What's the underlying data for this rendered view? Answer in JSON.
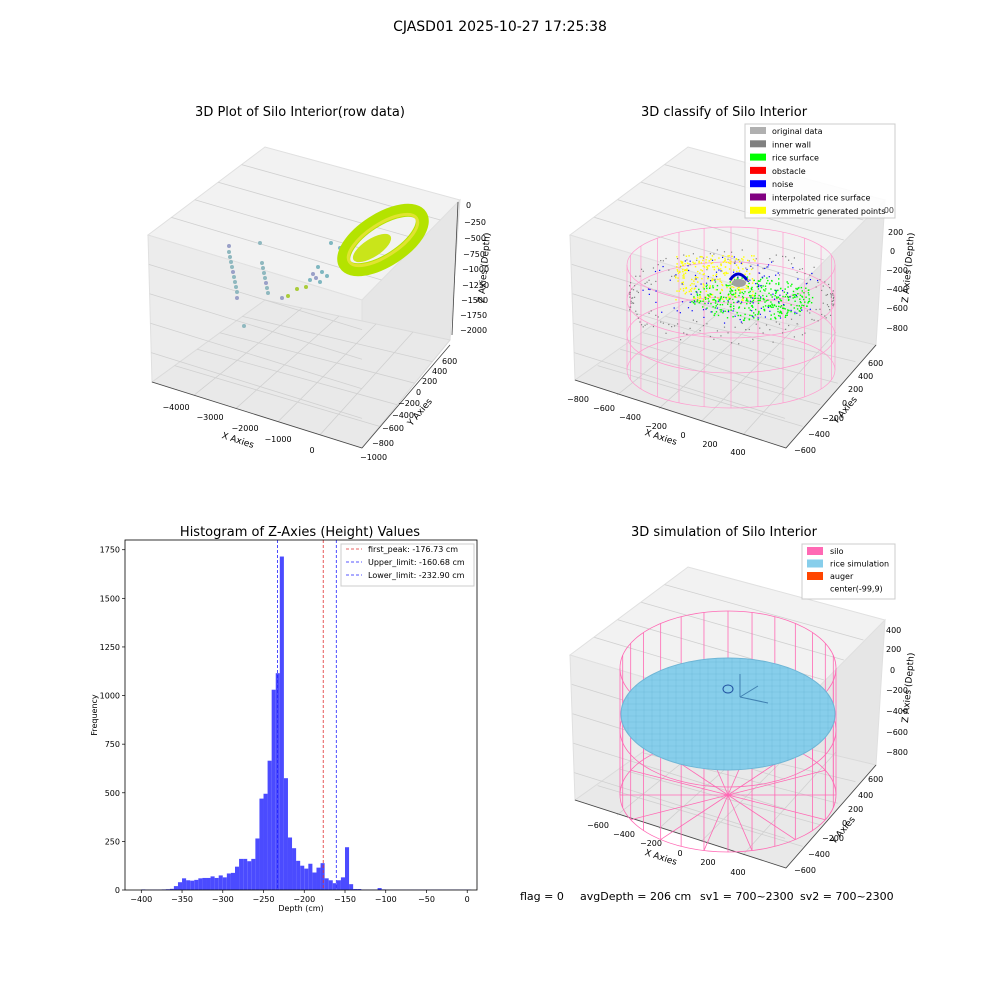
{
  "suptitle": "CJASD01 2025-10-27 17:25:38",
  "colors": {
    "hist_bar": "#4b4bff",
    "peak_line": "#e03030",
    "limit_line": "#2020ff",
    "silo": "#ff69b4",
    "rice_sim": "#87ceeb",
    "auger": "#ff4500",
    "rice_surface": "#00ff00",
    "noise": "#0000ff",
    "inner_wall": "#808080",
    "symmetric": "#ffff00"
  },
  "chart_data": [
    {
      "type": "scatter",
      "title": "3D Plot of Silo Interior(row data)",
      "xlabel": "X Axies",
      "ylabel": "Y Axies",
      "zlabel": "Z Axies (Depth)",
      "x_ticks": [
        "−4000",
        "−3000",
        "−2000",
        "−1000",
        "0"
      ],
      "y_ticks": [
        "−1000",
        "−800",
        "−600",
        "−400",
        "−200",
        "0",
        "200",
        "400",
        "600"
      ],
      "z_ticks": [
        "0",
        "−250",
        "−500",
        "−750",
        "−1000",
        "−1250",
        "−1500",
        "−1750",
        "−2000"
      ]
    },
    {
      "type": "scatter",
      "title": "3D classify of Silo Interior",
      "xlabel": "X Axies",
      "ylabel": "Y Axies",
      "zlabel": "Z Axies (Depth)",
      "x_ticks": [
        "−800",
        "−600",
        "−400",
        "−200",
        "0",
        "200",
        "400"
      ],
      "y_ticks": [
        "−600",
        "−400",
        "−200",
        "0",
        "200",
        "400",
        "600"
      ],
      "z_ticks": [
        "200",
        "0",
        "−200",
        "−400",
        "−600",
        "−800"
      ],
      "z_tick_partial": "00",
      "legend_position": "top-right",
      "legend": [
        {
          "label": "original data",
          "color": "#b0b0b0"
        },
        {
          "label": "inner wall",
          "color": "#808080"
        },
        {
          "label": "rice surface",
          "color": "#00ff00"
        },
        {
          "label": "obstacle",
          "color": "#ff0000"
        },
        {
          "label": "noise",
          "color": "#0000ff"
        },
        {
          "label": "interpolated rice surface",
          "color": "#800080"
        },
        {
          "label": "symmetric generated points",
          "color": "#ffff00"
        }
      ]
    },
    {
      "type": "bar",
      "title": "Histogram of Z-Axies (Height) Values",
      "xlabel": "Depth (cm)",
      "ylabel": "Frequency",
      "xlim": [
        -420,
        12
      ],
      "ylim": [
        0,
        1800
      ],
      "x_ticks": [
        -400,
        -350,
        -300,
        -250,
        -200,
        -150,
        -100,
        -50,
        0
      ],
      "y_ticks": [
        0,
        250,
        500,
        750,
        1000,
        1250,
        1500,
        1750
      ],
      "bin_width": 5,
      "bin_starts": [
        -400,
        -395,
        -390,
        -385,
        -380,
        -375,
        -370,
        -365,
        -360,
        -355,
        -350,
        -345,
        -340,
        -335,
        -330,
        -325,
        -320,
        -315,
        -310,
        -305,
        -300,
        -295,
        -290,
        -285,
        -280,
        -275,
        -270,
        -265,
        -260,
        -255,
        -250,
        -245,
        -240,
        -235,
        -230,
        -225,
        -220,
        -215,
        -210,
        -205,
        -200,
        -195,
        -190,
        -185,
        -180,
        -175,
        -170,
        -165,
        -160,
        -155,
        -150,
        -145,
        -140,
        -135,
        -130,
        -125,
        -120,
        -115,
        -110,
        -105,
        -100,
        -95,
        -90,
        -85,
        -80,
        -75,
        -70,
        -65,
        -60,
        -55,
        -50,
        -45,
        -40,
        -35,
        -30,
        -25,
        -20,
        -15,
        -10,
        -5,
        0
      ],
      "values": [
        3,
        2,
        2,
        2,
        2,
        3,
        4,
        6,
        20,
        40,
        60,
        50,
        48,
        52,
        60,
        62,
        62,
        70,
        62,
        75,
        65,
        85,
        88,
        120,
        160,
        160,
        148,
        160,
        265,
        470,
        495,
        665,
        1030,
        1115,
        1715,
        575,
        270,
        215,
        150,
        125,
        110,
        135,
        90,
        115,
        138,
        60,
        50,
        35,
        50,
        65,
        220,
        30,
        5,
        5,
        2,
        2,
        2,
        2,
        10,
        3,
        2,
        2,
        2,
        2,
        2,
        2,
        2,
        2,
        2,
        2,
        2,
        2,
        2,
        2,
        2,
        2,
        2,
        2,
        2,
        2,
        2
      ],
      "lines": [
        {
          "label": "first_peak: -176.73 cm",
          "x": -176.73,
          "color": "#e03030"
        },
        {
          "label": "Upper_limit: -160.68 cm",
          "x": -160.68,
          "color": "#2020ff"
        },
        {
          "label": "Lower_limit: -232.90 cm",
          "x": -232.9,
          "color": "#2020ff"
        }
      ],
      "legend_position": "top-right"
    },
    {
      "type": "scatter",
      "title": "3D simulation of Silo Interior",
      "xlabel": "X Axies",
      "ylabel": "Y Axies",
      "zlabel": "Z Axies (Depth)",
      "x_ticks": [
        "−600",
        "−400",
        "−200",
        "0",
        "200",
        "400"
      ],
      "y_ticks": [
        "−600",
        "−400",
        "−200",
        "0",
        "200",
        "400",
        "600"
      ],
      "z_ticks": [
        "400",
        "200",
        "0",
        "−200",
        "−400",
        "−600",
        "−800"
      ],
      "legend_position": "top-right",
      "legend": [
        {
          "label": "silo",
          "color": "#ff69b4"
        },
        {
          "label": "rice simulation",
          "color": "#87ceeb"
        },
        {
          "label": "auger",
          "color": "#ff4500"
        },
        {
          "label": "center(-99,9)",
          "color": ""
        }
      ]
    }
  ],
  "status": {
    "flag": "flag = 0",
    "avg": "avgDepth = 206 cm",
    "sv1": "sv1 = 700~2300",
    "sv2": "sv2 = 700~2300"
  }
}
